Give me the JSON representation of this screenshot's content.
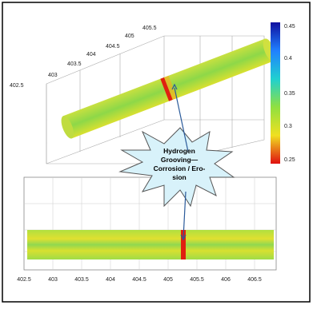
{
  "top_plot": {
    "axis_ticks": [
      "402.5",
      "403",
      "403.5",
      "404",
      "404.5",
      "405",
      "405.5"
    ],
    "colorbar_ticks": [
      "0.45",
      "0.4",
      "0.35",
      "0.3",
      "0.25"
    ]
  },
  "bottom_plot": {
    "x_ticks": [
      "402.5",
      "403",
      "403.5",
      "404",
      "404.5",
      "405",
      "405.5",
      "406",
      "406.5"
    ]
  },
  "callout": {
    "lines": [
      "Hydrogen",
      "Grooving—",
      "Corrosion / Ero-",
      "sion"
    ]
  }
}
